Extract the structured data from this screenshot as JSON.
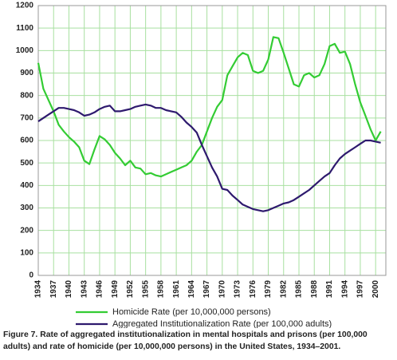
{
  "chart_data": {
    "type": "line",
    "x": [
      1934,
      1935,
      1936,
      1937,
      1938,
      1939,
      1940,
      1941,
      1942,
      1943,
      1944,
      1945,
      1946,
      1947,
      1948,
      1949,
      1950,
      1951,
      1952,
      1953,
      1954,
      1955,
      1956,
      1957,
      1958,
      1959,
      1960,
      1961,
      1962,
      1963,
      1964,
      1965,
      1966,
      1967,
      1968,
      1969,
      1970,
      1971,
      1972,
      1973,
      1974,
      1975,
      1976,
      1977,
      1978,
      1979,
      1980,
      1981,
      1982,
      1983,
      1984,
      1985,
      1986,
      1987,
      1988,
      1989,
      1990,
      1991,
      1992,
      1993,
      1994,
      1995,
      1996,
      1997,
      1998,
      1999,
      2000,
      2001
    ],
    "series": [
      {
        "name": "Homicide Rate (per 10,000,000 persons)",
        "color": "#33cc33",
        "values": [
          945,
          830,
          780,
          730,
          670,
          640,
          615,
          595,
          570,
          510,
          495,
          560,
          620,
          605,
          580,
          545,
          520,
          490,
          510,
          480,
          475,
          450,
          455,
          445,
          440,
          450,
          460,
          470,
          480,
          490,
          510,
          550,
          580,
          640,
          700,
          750,
          780,
          890,
          930,
          970,
          990,
          980,
          910,
          900,
          910,
          960,
          1060,
          1055,
          990,
          920,
          850,
          840,
          890,
          900,
          880,
          890,
          940,
          1020,
          1030,
          990,
          995,
          940,
          850,
          770,
          710,
          650,
          600,
          640
        ]
      },
      {
        "name": "Aggregated Institutionalization Rate (per 100,000 adults)",
        "color": "#2e1a6e",
        "values": [
          685,
          700,
          715,
          730,
          745,
          745,
          740,
          735,
          725,
          710,
          715,
          725,
          740,
          750,
          755,
          730,
          730,
          735,
          740,
          750,
          755,
          760,
          755,
          745,
          745,
          735,
          730,
          725,
          705,
          680,
          660,
          635,
          580,
          530,
          480,
          440,
          385,
          380,
          355,
          335,
          315,
          305,
          295,
          290,
          285,
          290,
          300,
          310,
          320,
          325,
          335,
          350,
          365,
          380,
          400,
          420,
          440,
          455,
          490,
          520,
          540,
          555,
          570,
          585,
          600,
          600,
          595,
          590
        ]
      }
    ],
    "xlim": [
      1934,
      2002
    ],
    "ylim": [
      0,
      1200
    ],
    "xticks": [
      1934,
      1937,
      1940,
      1943,
      1946,
      1949,
      1952,
      1955,
      1958,
      1961,
      1964,
      1967,
      1970,
      1973,
      1976,
      1979,
      1982,
      1985,
      1988,
      1991,
      1994,
      1997,
      2000
    ],
    "yticks": [
      0,
      100,
      200,
      300,
      400,
      500,
      600,
      700,
      800,
      900,
      1000,
      1100,
      1200
    ],
    "grid": true,
    "grid_color": "#a8e0a0",
    "caption": {
      "label": "Figure 7.",
      "text": "Rate of aggregated institutionalization in mental hospitals and prisons (per 100,000 adults) and rate of homicide (per 10,000,000 persons) in the United States, 1934–2001."
    }
  }
}
